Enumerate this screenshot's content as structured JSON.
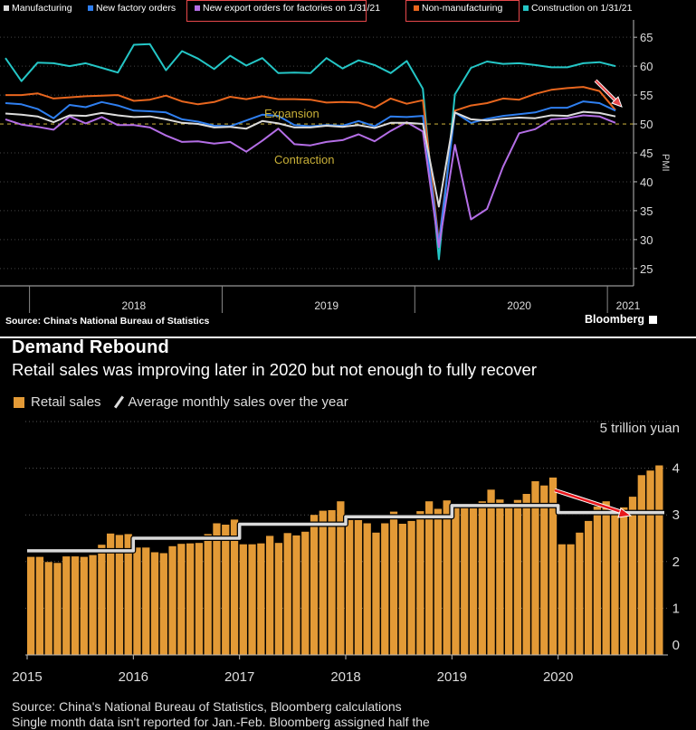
{
  "pmi_chart": {
    "legend": [
      {
        "label": "Manufacturing",
        "color": "#dcdcdc"
      },
      {
        "label": "New factory orders",
        "color": "#2f7ff0"
      },
      {
        "label": "New export orders for factories on 1/31/21",
        "color": "#b46ee6"
      },
      {
        "label": "Non-manufacturing",
        "color": "#e8661e"
      },
      {
        "label": "Construction on 1/31/21",
        "color": "#24c6c6"
      }
    ],
    "annotation_expansion": "Expansion",
    "annotation_contraction": "Contraction",
    "ylabel": "PMI",
    "source": "Source: China's National Bureau of Statistics",
    "brand": "Bloomberg"
  },
  "retail_chart": {
    "title": "Demand Rebound",
    "subtitle": "Retail sales was improving later in 2020 but not enough to fully recover",
    "legend_bar": "Retail sales",
    "legend_line": "Average monthly sales over the year",
    "unit_label": "5 trillion yuan",
    "source_line1": "Source: China's National Bureau of Statistics, Bloomberg calculations",
    "source_line2": "Single month data isn't reported for Jan.-Feb. Bloomberg assigned half the"
  },
  "chart_data": [
    {
      "type": "line",
      "title": "",
      "ylabel": "PMI",
      "ylim": [
        22,
        68
      ],
      "yticks": [
        25,
        30,
        35,
        40,
        45,
        50,
        55,
        60,
        65
      ],
      "x_tick_labels": [
        "2018",
        "2019",
        "2020",
        "2021"
      ],
      "x": [
        "2017-11",
        "2017-12",
        "2018-01",
        "2018-02",
        "2018-03",
        "2018-04",
        "2018-05",
        "2018-06",
        "2018-07",
        "2018-08",
        "2018-09",
        "2018-10",
        "2018-11",
        "2018-12",
        "2019-01",
        "2019-02",
        "2019-03",
        "2019-04",
        "2019-05",
        "2019-06",
        "2019-07",
        "2019-08",
        "2019-09",
        "2019-10",
        "2019-11",
        "2019-12",
        "2020-01",
        "2020-02",
        "2020-03",
        "2020-04",
        "2020-05",
        "2020-06",
        "2020-07",
        "2020-08",
        "2020-09",
        "2020-10",
        "2020-11",
        "2020-12",
        "2021-01"
      ],
      "reference_line": 50,
      "grid": true,
      "series": [
        {
          "name": "Manufacturing",
          "color": "#dcdcdc",
          "values": [
            51.8,
            51.6,
            51.3,
            50.3,
            51.5,
            51.4,
            51.9,
            51.5,
            51.2,
            51.3,
            50.8,
            50.2,
            50.0,
            49.4,
            49.5,
            49.2,
            50.5,
            50.1,
            49.4,
            49.4,
            49.7,
            49.5,
            49.8,
            49.3,
            50.2,
            50.2,
            50.0,
            35.7,
            52.0,
            50.8,
            50.6,
            50.9,
            51.1,
            51.0,
            51.5,
            51.4,
            52.1,
            51.9,
            51.3
          ]
        },
        {
          "name": "New factory orders",
          "color": "#2f7ff0",
          "values": [
            53.6,
            53.4,
            52.6,
            51.0,
            53.3,
            52.9,
            53.8,
            53.2,
            52.3,
            52.2,
            52.0,
            50.8,
            50.4,
            49.7,
            49.6,
            50.6,
            51.6,
            51.4,
            49.8,
            49.6,
            49.8,
            49.7,
            50.5,
            49.6,
            51.3,
            51.2,
            51.4,
            29.3,
            52.0,
            50.2,
            50.9,
            51.4,
            51.7,
            52.0,
            52.8,
            52.8,
            53.9,
            53.6,
            52.3
          ]
        },
        {
          "name": "New export orders for factories on 1/31/21",
          "color": "#b46ee6",
          "values": [
            50.8,
            49.9,
            49.5,
            49.0,
            51.3,
            50.1,
            51.2,
            49.8,
            49.8,
            49.4,
            48.0,
            46.9,
            47.0,
            46.6,
            46.9,
            45.2,
            47.1,
            49.2,
            46.5,
            46.3,
            46.9,
            47.2,
            48.2,
            47.0,
            48.8,
            50.3,
            48.7,
            28.7,
            46.4,
            33.5,
            35.3,
            42.6,
            48.4,
            49.1,
            50.8,
            51.0,
            51.5,
            51.3,
            50.2
          ]
        },
        {
          "name": "Non-manufacturing",
          "color": "#e8661e",
          "values": [
            55.0,
            55.0,
            55.3,
            54.4,
            54.6,
            54.8,
            54.9,
            55.0,
            54.0,
            54.2,
            54.9,
            53.9,
            53.4,
            53.8,
            54.7,
            54.3,
            54.8,
            54.3,
            54.3,
            54.2,
            53.7,
            53.8,
            53.7,
            52.8,
            54.4,
            53.5,
            54.1,
            29.6,
            52.3,
            53.2,
            53.6,
            54.4,
            54.2,
            55.2,
            55.9,
            56.2,
            56.4,
            55.7,
            52.4
          ]
        },
        {
          "name": "Construction on 1/31/21",
          "color": "#24c6c6",
          "values": [
            61.4,
            57.4,
            60.6,
            60.5,
            60.0,
            60.5,
            59.7,
            58.9,
            63.7,
            63.8,
            59.3,
            62.6,
            61.3,
            59.5,
            61.8,
            60.1,
            61.4,
            58.8,
            58.9,
            58.8,
            61.4,
            59.6,
            61.0,
            60.2,
            58.8,
            60.9,
            56.1,
            26.6,
            55.1,
            59.7,
            60.8,
            60.4,
            60.5,
            60.2,
            59.8,
            59.8,
            60.5,
            60.7,
            60.0
          ]
        }
      ]
    },
    {
      "type": "bar",
      "title": "Demand Rebound",
      "subtitle": "Retail sales was improving later in 2020 but not enough to fully recover",
      "ylabel": "5 trillion yuan",
      "ylim": [
        0,
        5
      ],
      "yticks": [
        0,
        1,
        2,
        3,
        4
      ],
      "x_tick_labels": [
        "2015",
        "2016",
        "2017",
        "2018",
        "2019",
        "2020"
      ],
      "x_start": "2015-01",
      "grid": true,
      "legend": "top-left",
      "series": [
        {
          "name": "Retail sales",
          "color": "#e39a36",
          "values": [
            2.1,
            2.1,
            1.99,
            1.97,
            2.11,
            2.11,
            2.1,
            2.14,
            2.36,
            2.6,
            2.57,
            2.59,
            2.3,
            2.3,
            2.2,
            2.18,
            2.33,
            2.38,
            2.39,
            2.4,
            2.59,
            2.82,
            2.79,
            2.9,
            2.37,
            2.37,
            2.39,
            2.55,
            2.4,
            2.61,
            2.56,
            2.64,
            3.0,
            3.09,
            3.1,
            3.29,
            2.89,
            2.89,
            2.82,
            2.62,
            2.82,
            3.07,
            2.81,
            2.87,
            3.08,
            3.29,
            3.13,
            3.31,
            3.25,
            3.24,
            3.14,
            3.29,
            3.54,
            3.33,
            3.17,
            3.32,
            3.45,
            3.72,
            3.63,
            3.8,
            2.37,
            2.37,
            2.62,
            2.87,
            3.18,
            3.29,
            3.12,
            3.16,
            3.39,
            3.85,
            3.95,
            4.06
          ]
        },
        {
          "name": "Average monthly sales over the year",
          "color": "#d9d9d9",
          "values": [
            2.23,
            2.23,
            2.23,
            2.23,
            2.23,
            2.23,
            2.23,
            2.23,
            2.23,
            2.23,
            2.23,
            2.23,
            2.5,
            2.5,
            2.5,
            2.5,
            2.5,
            2.5,
            2.5,
            2.5,
            2.5,
            2.5,
            2.5,
            2.5,
            2.8,
            2.8,
            2.8,
            2.8,
            2.8,
            2.8,
            2.8,
            2.8,
            2.8,
            2.8,
            2.8,
            2.8,
            2.96,
            2.96,
            2.96,
            2.96,
            2.96,
            2.96,
            2.96,
            2.96,
            2.96,
            2.96,
            2.96,
            2.96,
            3.2,
            3.2,
            3.2,
            3.2,
            3.2,
            3.2,
            3.2,
            3.2,
            3.2,
            3.2,
            3.2,
            3.2,
            3.05,
            3.05,
            3.05,
            3.05,
            3.05,
            3.05,
            3.05,
            3.05,
            3.05,
            3.05,
            3.05,
            3.05
          ]
        }
      ]
    }
  ]
}
